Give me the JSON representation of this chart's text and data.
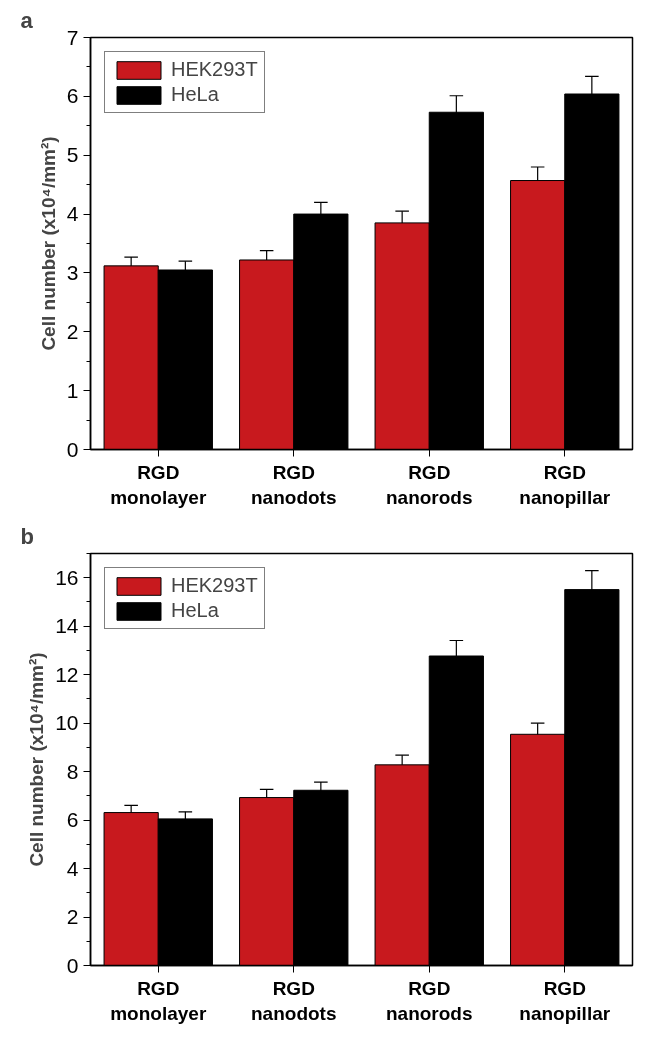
{
  "chart_data": [
    {
      "type": "bar",
      "title": "a",
      "ylabel": "Cell number (x10⁴/mm²)",
      "categories": [
        "RGD monolayer",
        "RGD nanodots",
        "RGD nanorods",
        "RGD nanopillar"
      ],
      "series": [
        {
          "name": "HEK293T",
          "color": "#c8191e",
          "values": [
            3.12,
            3.22,
            3.85,
            4.57
          ],
          "errors": [
            0.15,
            0.16,
            0.2,
            0.23
          ]
        },
        {
          "name": "HeLa",
          "color": "#000000",
          "values": [
            3.05,
            4.0,
            5.73,
            6.04
          ],
          "errors": [
            0.15,
            0.2,
            0.28,
            0.3
          ]
        }
      ],
      "ylim": [
        0,
        7
      ],
      "yticks": [
        0,
        1,
        2,
        3,
        4,
        5,
        6,
        7
      ],
      "legend": "top left",
      "grid": false
    },
    {
      "type": "bar",
      "title": "b",
      "ylabel": "Cell number (x10⁴/mm²)",
      "categories": [
        "RGD monolayer",
        "RGD nanodots",
        "RGD nanorods",
        "RGD nanopillar"
      ],
      "series": [
        {
          "name": "HEK293T",
          "color": "#c8191e",
          "values": [
            6.31,
            6.93,
            8.28,
            9.54
          ],
          "errors": [
            0.3,
            0.34,
            0.4,
            0.46
          ]
        },
        {
          "name": "HeLa",
          "color": "#000000",
          "values": [
            6.05,
            7.23,
            12.77,
            15.51
          ],
          "errors": [
            0.29,
            0.34,
            0.64,
            0.78
          ]
        }
      ],
      "ylim": [
        0,
        17
      ],
      "yticks": [
        0,
        2,
        4,
        6,
        8,
        10,
        12,
        14,
        16
      ],
      "legend": "top left",
      "grid": false
    }
  ]
}
